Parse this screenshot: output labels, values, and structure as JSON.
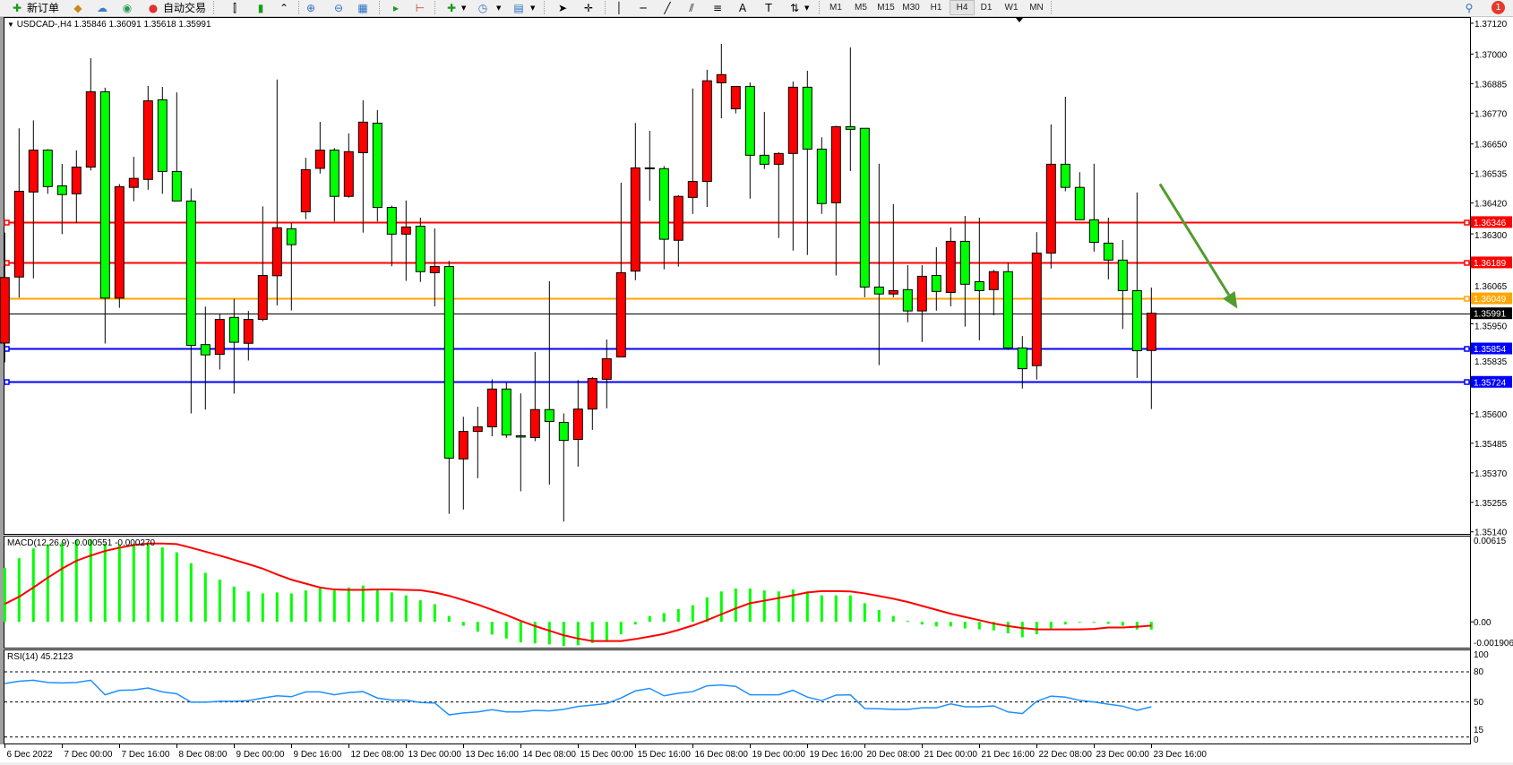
{
  "toolbar": {
    "new_order_label": "新订单",
    "auto_trading_label": "自动交易",
    "icons": [
      "new-order-icon",
      "market-watch-icon",
      "cloud-icon",
      "signals-icon",
      "auto-trading-icon",
      "bar-chart-icon",
      "candlestick-icon",
      "line-chart-icon",
      "zoom-in-icon",
      "zoom-out-icon",
      "tile-windows-icon",
      "auto-scroll-icon",
      "chart-shift-icon",
      "indicators-icon",
      "periods-icon",
      "templates-icon",
      "cursor-icon",
      "crosshair-icon",
      "vertical-line-icon",
      "horizontal-line-icon",
      "trendline-icon",
      "equidistant-channel-icon",
      "fibonacci-icon",
      "text-icon",
      "text-label-icon",
      "arrows-icon",
      "search-icon",
      "notification-icon"
    ],
    "timeframes": [
      "M1",
      "M5",
      "M15",
      "M30",
      "H1",
      "H4",
      "D1",
      "W1",
      "MN"
    ],
    "active_timeframe": "H4",
    "notification_count": "1"
  },
  "chart": {
    "symbol_header": "USDCAD-,H4  1.35846 1.36091 1.35618 1.35991",
    "macd_header": "MACD(12,26,9) -0.000551 -0.000270",
    "rsi_header": "RSI(14) 45.2123",
    "colors": {
      "bull": "#ff0000",
      "bear": "#00ff00",
      "macd_hist": "#00ff00",
      "macd_signal": "#ff0000",
      "rsi": "#1e90ff",
      "arrow": "#519b2f"
    }
  },
  "chart_data": [
    {
      "type": "candlestick",
      "title": "USDCAD-,H4",
      "ylim": [
        1.3514,
        1.3712
      ],
      "price_ticks": [
        "1.37120",
        "1.37000",
        "1.36885",
        "1.36770",
        "1.36650",
        "1.36535",
        "1.36420",
        "1.36300",
        "1.36065",
        "1.35950",
        "1.35835",
        "1.35600",
        "1.35485",
        "1.35370",
        "1.35255",
        "1.35140"
      ],
      "time_labels": [
        "6 Dec 2022",
        "7 Dec 00:00",
        "7 Dec 16:00",
        "8 Dec 08:00",
        "9 Dec 00:00",
        "9 Dec 16:00",
        "12 Dec 08:00",
        "13 Dec 00:00",
        "13 Dec 16:00",
        "14 Dec 08:00",
        "15 Dec 00:00",
        "15 Dec 16:00",
        "16 Dec 08:00",
        "19 Dec 00:00",
        "19 Dec 16:00",
        "20 Dec 08:00",
        "21 Dec 00:00",
        "21 Dec 16:00",
        "22 Dec 08:00",
        "23 Dec 00:00",
        "23 Dec 16:00"
      ],
      "time_label_every": 4,
      "levels": [
        {
          "price": "1.36346",
          "color": "#ff0000"
        },
        {
          "price": "1.36189",
          "color": "#ff0000"
        },
        {
          "price": "1.36049",
          "color": "#ffa500"
        },
        {
          "price": "1.35991",
          "color": "#000000",
          "bid": true
        },
        {
          "price": "1.35854",
          "color": "#0000ff"
        },
        {
          "price": "1.35724",
          "color": "#0000ff"
        }
      ],
      "annotation": {
        "type": "arrow",
        "from": {
          "candle": 81.6,
          "price": 1.36494
        },
        "to": {
          "candle": 87.0,
          "price": 1.36009
        }
      },
      "ohlc": [
        [
          1.35875,
          1.36305,
          1.358,
          1.3613
        ],
        [
          1.36132,
          1.36711,
          1.36052,
          1.36466
        ],
        [
          1.36463,
          1.36742,
          1.36127,
          1.36626
        ],
        [
          1.36626,
          1.3663,
          1.36456,
          1.36484
        ],
        [
          1.36487,
          1.36572,
          1.36299,
          1.36453
        ],
        [
          1.36456,
          1.36625,
          1.36341,
          1.3656
        ],
        [
          1.3656,
          1.36984,
          1.36547,
          1.36853
        ],
        [
          1.36853,
          1.36869,
          1.35873,
          1.3605
        ],
        [
          1.3605,
          1.36494,
          1.36012,
          1.36484
        ],
        [
          1.36481,
          1.366,
          1.36427,
          1.36516
        ],
        [
          1.36512,
          1.36876,
          1.36472,
          1.36818
        ],
        [
          1.36822,
          1.36872,
          1.36456,
          1.36543
        ],
        [
          1.36543,
          1.36851,
          1.36428,
          1.36428
        ],
        [
          1.36428,
          1.36477,
          1.35601,
          1.35866
        ],
        [
          1.35869,
          1.36017,
          1.35616,
          1.35829
        ],
        [
          1.35831,
          1.35988,
          1.35772,
          1.35967
        ],
        [
          1.35975,
          1.36047,
          1.35678,
          1.35878
        ],
        [
          1.35874,
          1.36,
          1.35807,
          1.35967
        ],
        [
          1.35967,
          1.36407,
          1.3596,
          1.36138
        ],
        [
          1.36137,
          1.36901,
          1.36022,
          1.36324
        ],
        [
          1.3632,
          1.36342,
          1.36002,
          1.36258
        ],
        [
          1.36386,
          1.36596,
          1.36357,
          1.3655
        ],
        [
          1.36555,
          1.36736,
          1.36535,
          1.36626
        ],
        [
          1.36626,
          1.36634,
          1.36348,
          1.36446
        ],
        [
          1.36446,
          1.36691,
          1.36441,
          1.3662
        ],
        [
          1.36616,
          1.3682,
          1.36305,
          1.36735
        ],
        [
          1.36731,
          1.36782,
          1.36348,
          1.36403
        ],
        [
          1.36403,
          1.3641,
          1.36174,
          1.36299
        ],
        [
          1.36299,
          1.3643,
          1.36117,
          1.36327
        ],
        [
          1.3633,
          1.36363,
          1.36113,
          1.36153
        ],
        [
          1.36149,
          1.36321,
          1.36018,
          1.36173
        ],
        [
          1.36173,
          1.36195,
          1.3521,
          1.35427
        ],
        [
          1.35424,
          1.35588,
          1.35227,
          1.35531
        ],
        [
          1.35531,
          1.35627,
          1.35349,
          1.35549
        ],
        [
          1.35549,
          1.35734,
          1.35512,
          1.35696
        ],
        [
          1.35696,
          1.35722,
          1.35506,
          1.35517
        ],
        [
          1.35514,
          1.35679,
          1.35298,
          1.35509
        ],
        [
          1.35507,
          1.3584,
          1.35493,
          1.35616
        ],
        [
          1.35616,
          1.36116,
          1.35324,
          1.3557
        ],
        [
          1.35566,
          1.35601,
          1.3518,
          1.35496
        ],
        [
          1.355,
          1.35731,
          1.35394,
          1.35618
        ],
        [
          1.35618,
          1.35743,
          1.35537,
          1.35737
        ],
        [
          1.35734,
          1.35889,
          1.35621,
          1.35814
        ],
        [
          1.35821,
          1.36499,
          1.35821,
          1.36149
        ],
        [
          1.36155,
          1.36732,
          1.3612,
          1.36557
        ],
        [
          1.36557,
          1.36701,
          1.36429,
          1.36557
        ],
        [
          1.36554,
          1.36564,
          1.36162,
          1.36279
        ],
        [
          1.36275,
          1.36451,
          1.36173,
          1.36446
        ],
        [
          1.36442,
          1.36866,
          1.36378,
          1.36504
        ],
        [
          1.36504,
          1.36939,
          1.36405,
          1.36896
        ],
        [
          1.36888,
          1.3704,
          1.3675,
          1.3692
        ],
        [
          1.36787,
          1.36874,
          1.36769,
          1.36874
        ],
        [
          1.36874,
          1.36889,
          1.36437,
          1.36606
        ],
        [
          1.36606,
          1.36775,
          1.36553,
          1.36571
        ],
        [
          1.36571,
          1.36618,
          1.36284,
          1.36613
        ],
        [
          1.36613,
          1.36893,
          1.36235,
          1.36871
        ],
        [
          1.36871,
          1.36935,
          1.36218,
          1.3663
        ],
        [
          1.3663,
          1.36676,
          1.36378,
          1.36418
        ],
        [
          1.36421,
          1.36721,
          1.36138,
          1.36717
        ],
        [
          1.36717,
          1.37026,
          1.36545,
          1.36707
        ],
        [
          1.36711,
          1.36711,
          1.36053,
          1.36093
        ],
        [
          1.36093,
          1.36573,
          1.35789,
          1.36066
        ],
        [
          1.36066,
          1.36416,
          1.36053,
          1.36079
        ],
        [
          1.36083,
          1.36178,
          1.35956,
          1.36
        ],
        [
          1.36,
          1.36178,
          1.35879,
          1.36135
        ],
        [
          1.36138,
          1.36248,
          1.36001,
          1.36076
        ],
        [
          1.36072,
          1.36325,
          1.36018,
          1.36271
        ],
        [
          1.36271,
          1.3637,
          1.35939,
          1.36104
        ],
        [
          1.36114,
          1.36363,
          1.35886,
          1.36079
        ],
        [
          1.36083,
          1.3616,
          1.35983,
          1.36153
        ],
        [
          1.36153,
          1.36187,
          1.35848,
          1.35856
        ],
        [
          1.35856,
          1.35902,
          1.35698,
          1.35775
        ],
        [
          1.35787,
          1.36307,
          1.35733,
          1.36225
        ],
        [
          1.36225,
          1.36726,
          1.36165,
          1.36571
        ],
        [
          1.36571,
          1.36834,
          1.36466,
          1.36481
        ],
        [
          1.36481,
          1.3654,
          1.36355,
          1.36355
        ],
        [
          1.36355,
          1.36573,
          1.36231,
          1.36267
        ],
        [
          1.36264,
          1.36363,
          1.36123,
          1.36198
        ],
        [
          1.36198,
          1.36276,
          1.3593,
          1.36079
        ],
        [
          1.36079,
          1.36461,
          1.35739,
          1.35845
        ],
        [
          1.35846,
          1.36091,
          1.35618,
          1.35991
        ]
      ]
    },
    {
      "type": "bar+line",
      "title": "MACD(12,26,9)",
      "ylim": [
        -0.001906,
        0.00615
      ],
      "ticks": [
        "0.00615",
        "0.00",
        "-0.001906"
      ],
      "histogram": [
        0.00384,
        0.00454,
        0.00524,
        0.00552,
        0.00566,
        0.00583,
        0.00587,
        0.00559,
        0.00552,
        0.00548,
        0.00552,
        0.00531,
        0.00496,
        0.00419,
        0.0035,
        0.00301,
        0.00252,
        0.00217,
        0.00203,
        0.0021,
        0.00203,
        0.00224,
        0.00238,
        0.00224,
        0.00245,
        0.00259,
        0.00231,
        0.0021,
        0.00189,
        0.00154,
        0.00126,
        0.00042,
        -0.00028,
        -0.0007,
        -0.00091,
        -0.00119,
        -0.00147,
        -0.00154,
        -0.00161,
        -0.00172,
        -0.00168,
        -0.00151,
        -0.00133,
        -0.00089,
        -0.00019,
        0.00042,
        0.00063,
        0.00091,
        0.00119,
        0.00175,
        0.00217,
        0.00238,
        0.00238,
        0.00224,
        0.00217,
        0.00231,
        0.00217,
        0.00189,
        0.00189,
        0.00189,
        0.00133,
        0.00084,
        0.00042,
        7e-05,
        -0.00019,
        -0.00033,
        -0.00033,
        -0.00047,
        -0.00054,
        -0.00061,
        -0.00082,
        -0.0011,
        -0.00089,
        -0.00047,
        -0.00019,
        -5e-05,
        -5e-05,
        -0.00014,
        -0.00028,
        -0.00054,
        -0.000551
      ],
      "signal": [
        0.00128,
        0.00179,
        0.00245,
        0.00315,
        0.0038,
        0.00436,
        0.00473,
        0.00506,
        0.00529,
        0.00548,
        0.00559,
        0.00559,
        0.00555,
        0.00529,
        0.00501,
        0.00473,
        0.00443,
        0.00412,
        0.0038,
        0.00338,
        0.00301,
        0.00273,
        0.00245,
        0.00231,
        0.00228,
        0.00228,
        0.00231,
        0.00231,
        0.00228,
        0.00226,
        0.0021,
        0.00186,
        0.00156,
        0.00123,
        0.00086,
        0.00049,
        7e-05,
        -0.0003,
        -0.00063,
        -0.00096,
        -0.00119,
        -0.00137,
        -0.00137,
        -0.00137,
        -0.00123,
        -0.00105,
        -0.00086,
        -0.00058,
        -0.00026,
        0.00012,
        0.00054,
        0.00096,
        0.00133,
        0.00151,
        0.0017,
        0.00189,
        0.0021,
        0.00219,
        0.00219,
        0.00217,
        0.00203,
        0.00184,
        0.00165,
        0.00142,
        0.00114,
        0.00086,
        0.00058,
        0.00035,
        0.00012,
        -0.00012,
        -0.0003,
        -0.00044,
        -0.00054,
        -0.00054,
        -0.00054,
        -0.00054,
        -0.00051,
        -0.0004,
        -0.0004,
        -0.00035,
        -0.00027
      ]
    },
    {
      "type": "line",
      "title": "RSI(14)",
      "ylim": [
        0,
        100
      ],
      "ticks": [
        "100",
        "80",
        "50",
        "15",
        "0"
      ],
      "levels": [
        80,
        50,
        15
      ],
      "values": [
        68.4,
        70.6,
        71.6,
        69.4,
        69.0,
        69.4,
        71.6,
        57.1,
        61.6,
        61.9,
        63.9,
        60.0,
        58.1,
        49.7,
        49.7,
        50.6,
        50.6,
        51.3,
        53.9,
        56.1,
        55.2,
        60.0,
        60.0,
        57.1,
        59.4,
        60.3,
        53.9,
        51.9,
        51.9,
        49.4,
        49.0,
        37.1,
        39.0,
        40.0,
        42.3,
        40.0,
        40.0,
        41.6,
        41.0,
        42.6,
        45.5,
        46.8,
        48.4,
        53.9,
        61.0,
        63.5,
        56.1,
        58.7,
        60.3,
        66.1,
        66.8,
        65.5,
        57.1,
        57.1,
        57.1,
        61.6,
        54.8,
        51.3,
        56.8,
        57.1,
        43.5,
        43.2,
        42.6,
        42.6,
        44.2,
        44.2,
        48.1,
        45.2,
        45.2,
        46.1,
        40.0,
        38.4,
        50.6,
        55.8,
        54.8,
        51.6,
        50.0,
        47.7,
        45.8,
        41.6,
        45.2123
      ]
    }
  ]
}
